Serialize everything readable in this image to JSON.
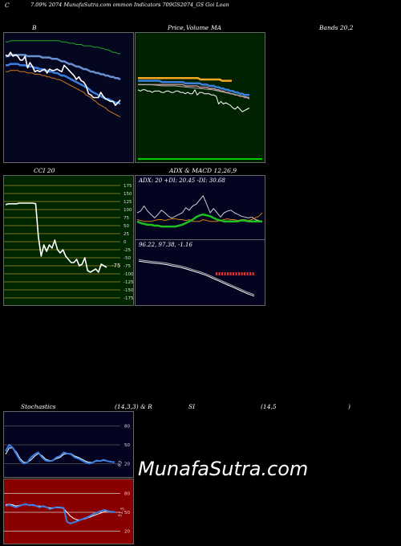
{
  "header": {
    "left": "C",
    "subtitle": "7.09% 2074  MunafaSutra.com  ommon  Indicators 709GS2074_GS Goi  Loan"
  },
  "titles": {
    "bb": "B",
    "price": "Price,",
    "volume": "Volume",
    "ma": "MA",
    "bands": "Bands 20,2",
    "cci": "CCI 20",
    "adx": "ADX  & MACD 12,26,9",
    "stoch": "Stochastics",
    "stoch_params": "(14,3,3) & R",
    "si": "SI",
    "rsi_params": "(14,5",
    "rsi_close": ")"
  },
  "adx_label": "ADX: 20  +DI: 20.45 -DI: 30.68",
  "macd_label": "96.22,  97.38,  -1.16",
  "cci_value": "-75",
  "stoch_value": "63",
  "rsi_value": "51.5",
  "cci_ticks": [
    "175",
    "150",
    "125",
    "100",
    "75",
    "50",
    "25",
    "0",
    "-25",
    "-50",
    "-75",
    "-100",
    "-125",
    "-150",
    "-175"
  ],
  "stoch_ticks": [
    "80",
    "50",
    "20"
  ],
  "rsi_ticks": [
    "80",
    "50",
    "20"
  ],
  "watermark": "MunafaSutra.com",
  "colors": {
    "bb_bg": "#050620",
    "price_bg": "#002200",
    "cci_bg": "#002600",
    "adx_bg": "#040420",
    "stoch_bg": "#040420",
    "rsi_bg": "#8a0000",
    "blue": "#3b7fe0",
    "green": "#1fbf1f",
    "orange": "#d07a18",
    "gold": "#f5a623"
  },
  "chart_data": [
    {
      "type": "line",
      "title": "B",
      "series": [
        {
          "values": [
            83,
            82,
            85,
            82,
            83,
            82,
            79,
            79,
            82,
            73,
            77,
            74,
            70,
            71,
            70,
            71,
            72,
            69,
            72,
            71,
            71,
            72,
            71,
            70,
            75,
            73,
            71,
            69,
            67,
            64,
            66,
            63,
            62,
            59,
            53,
            52,
            50,
            50,
            50,
            54,
            51,
            49,
            48,
            47,
            47,
            44,
            46,
            48
          ]
        },
        {
          "values": [
            75,
            75,
            76,
            76,
            76,
            76,
            75,
            75,
            75,
            74,
            74,
            74,
            73,
            73,
            72,
            72,
            71,
            71,
            70,
            70,
            69,
            69,
            68,
            67,
            67,
            66,
            65,
            64,
            63,
            62,
            61,
            60,
            59,
            58,
            57,
            55,
            54,
            53,
            52,
            51,
            50,
            49,
            49,
            48,
            47,
            46,
            46,
            45
          ]
        },
        {
          "values": [
            82,
            82,
            83,
            83,
            83,
            83,
            83,
            83,
            83,
            82,
            82,
            82,
            82,
            82,
            82,
            81,
            81,
            81,
            81,
            80,
            80,
            80,
            79,
            78,
            78,
            77,
            76,
            76,
            75,
            74,
            74,
            73,
            72,
            72,
            71,
            70,
            70,
            69,
            69,
            68,
            68,
            67,
            67,
            66,
            66,
            65,
            65,
            64
          ]
        },
        {
          "values": [
            70,
            70,
            71,
            71,
            71,
            71,
            70,
            70,
            70,
            69,
            69,
            69,
            68,
            68,
            68,
            67,
            67,
            66,
            66,
            65,
            65,
            64,
            64,
            63,
            62,
            61,
            60,
            59,
            58,
            57,
            56,
            55,
            54,
            52,
            51,
            50,
            48,
            47,
            45,
            44,
            43,
            42,
            40,
            39,
            38,
            37,
            36,
            35
          ]
        },
        {
          "values": [
            93,
            93,
            94,
            94,
            94,
            94,
            94,
            94,
            94,
            94,
            94,
            94,
            94,
            94,
            94,
            94,
            94,
            94,
            94,
            94,
            94,
            94,
            94,
            93,
            93,
            93,
            92,
            92,
            92,
            91,
            91,
            91,
            90,
            90,
            90,
            90,
            89,
            89,
            89,
            88,
            88,
            87,
            87,
            86,
            85,
            85,
            84,
            84
          ]
        }
      ]
    },
    {
      "type": "line",
      "title": "Price, Volume MA",
      "series": [
        {
          "values": [
            56,
            55,
            56,
            56,
            55,
            55,
            54,
            55,
            55,
            55,
            54,
            54,
            55,
            55,
            54,
            54,
            55,
            55,
            54,
            54,
            53,
            54,
            53,
            53,
            56,
            52,
            54,
            54,
            53,
            53,
            53,
            52,
            52,
            51,
            45,
            47,
            45,
            46,
            45,
            44,
            42,
            41,
            43,
            41,
            39,
            40,
            41,
            42
          ]
        },
        {
          "values": [
            65,
            65,
            65,
            65,
            65,
            65,
            65,
            65,
            65,
            65,
            65,
            65,
            65,
            65,
            65,
            65,
            65,
            65,
            65,
            65,
            65,
            65,
            65,
            65,
            65,
            65,
            64,
            64,
            64,
            64,
            64,
            64,
            64,
            64,
            64,
            63,
            63,
            63,
            63,
            63
          ]
        },
        {
          "values": [
            63,
            63,
            63,
            63,
            63,
            63,
            63,
            63,
            63,
            63,
            62,
            62,
            62,
            62,
            62,
            62,
            62,
            62,
            62,
            62,
            61,
            61,
            61,
            61,
            61,
            61,
            61,
            60,
            60,
            60,
            59,
            59,
            59,
            58,
            58,
            57,
            57,
            56,
            56,
            55,
            55,
            54,
            54,
            53,
            53,
            52,
            52,
            52
          ]
        },
        {
          "values": [
            60,
            60,
            60,
            60,
            60,
            60,
            60,
            60,
            60,
            60,
            60,
            60,
            60,
            60,
            60,
            60,
            60,
            60,
            60,
            60,
            59,
            59,
            59,
            59,
            59,
            59,
            58,
            58,
            58,
            58,
            57,
            57,
            57,
            56,
            56,
            55,
            55,
            54,
            54,
            53,
            53,
            52,
            52,
            51,
            51,
            50,
            50,
            49
          ]
        }
      ]
    },
    {
      "type": "line",
      "title": "CCI 20",
      "ylim": [
        -175,
        175
      ],
      "series": [
        {
          "values": [
            115,
            118,
            118,
            118,
            118,
            120,
            120,
            120,
            120,
            120,
            120,
            118,
            15,
            -45,
            -10,
            -30,
            -10,
            -20,
            5,
            -25,
            -35,
            -25,
            -45,
            -55,
            -65,
            -65,
            -55,
            -75,
            -70,
            -50,
            -90,
            -95,
            -90,
            -85,
            -95,
            -70,
            -75,
            -80
          ]
        }
      ]
    },
    {
      "type": "line",
      "title": "ADX & MACD 12,26,9",
      "series": [
        {
          "name": "ADX",
          "values": [
            20,
            18,
            17,
            16,
            16,
            15,
            15,
            14,
            14,
            14,
            14,
            14,
            15,
            16,
            18,
            20,
            22,
            25,
            27,
            28,
            27,
            26,
            24,
            22,
            21,
            20,
            20,
            20,
            20,
            20,
            21,
            21,
            20,
            20,
            20,
            20,
            20
          ]
        },
        {
          "name": "+DI",
          "values": [
            30,
            32,
            38,
            32,
            28,
            24,
            28,
            33,
            30,
            26,
            24,
            26,
            28,
            30,
            36,
            33,
            38,
            40,
            45,
            50,
            40,
            30,
            35,
            30,
            25,
            30,
            32,
            33,
            30,
            28,
            26,
            25,
            24,
            25,
            22,
            21,
            20
          ]
        },
        {
          "name": "-DI",
          "values": [
            22,
            21,
            20,
            20,
            20,
            21,
            22,
            22,
            21,
            22,
            23,
            23,
            22,
            22,
            21,
            22,
            20,
            20,
            20,
            22,
            21,
            20,
            20,
            20,
            21,
            22,
            23,
            22,
            22,
            21,
            22,
            22,
            21,
            22,
            24,
            26,
            30
          ]
        },
        {
          "name": "MACD",
          "values": [
            97.38,
            97.35,
            97.32,
            97.3,
            97.27,
            97.22,
            97.18,
            97.12,
            97.05,
            96.98,
            96.9,
            96.8,
            96.7,
            96.6,
            96.5,
            96.4,
            96.3,
            96.22
          ]
        }
      ]
    },
    {
      "type": "line",
      "title": "Stochastics (14,3,3)",
      "ylim": [
        0,
        100
      ],
      "series": [
        {
          "values": [
            40,
            50,
            45,
            35,
            25,
            20,
            22,
            30,
            35,
            38,
            30,
            25,
            24,
            25,
            30,
            32,
            38,
            36,
            35,
            30,
            28,
            25,
            22,
            20,
            22,
            25,
            24,
            26,
            24,
            23,
            22
          ]
        },
        {
          "values": [
            35,
            45,
            45,
            38,
            28,
            22,
            22,
            26,
            32,
            36,
            33,
            27,
            25,
            25,
            28,
            30,
            35,
            36,
            36,
            32,
            30,
            27,
            24,
            22,
            22,
            24,
            24,
            25,
            24,
            23,
            22
          ]
        }
      ]
    },
    {
      "type": "line",
      "title": "RSI (14,5)",
      "ylim": [
        0,
        100
      ],
      "series": [
        {
          "values": [
            60,
            62,
            60,
            58,
            60,
            62,
            63,
            61,
            62,
            60,
            58,
            60,
            58,
            55,
            57,
            58,
            58,
            57,
            35,
            32,
            34,
            36,
            38,
            40,
            42,
            45,
            48,
            50,
            52,
            54,
            52,
            50,
            51
          ]
        },
        {
          "values": [
            62,
            63,
            62,
            60,
            61,
            62,
            62,
            62,
            61,
            60,
            60,
            59,
            58,
            57,
            57,
            57,
            57,
            56,
            50,
            44,
            40,
            38,
            38,
            39,
            41,
            43,
            45,
            47,
            49,
            51,
            52,
            51,
            51
          ]
        }
      ]
    }
  ]
}
